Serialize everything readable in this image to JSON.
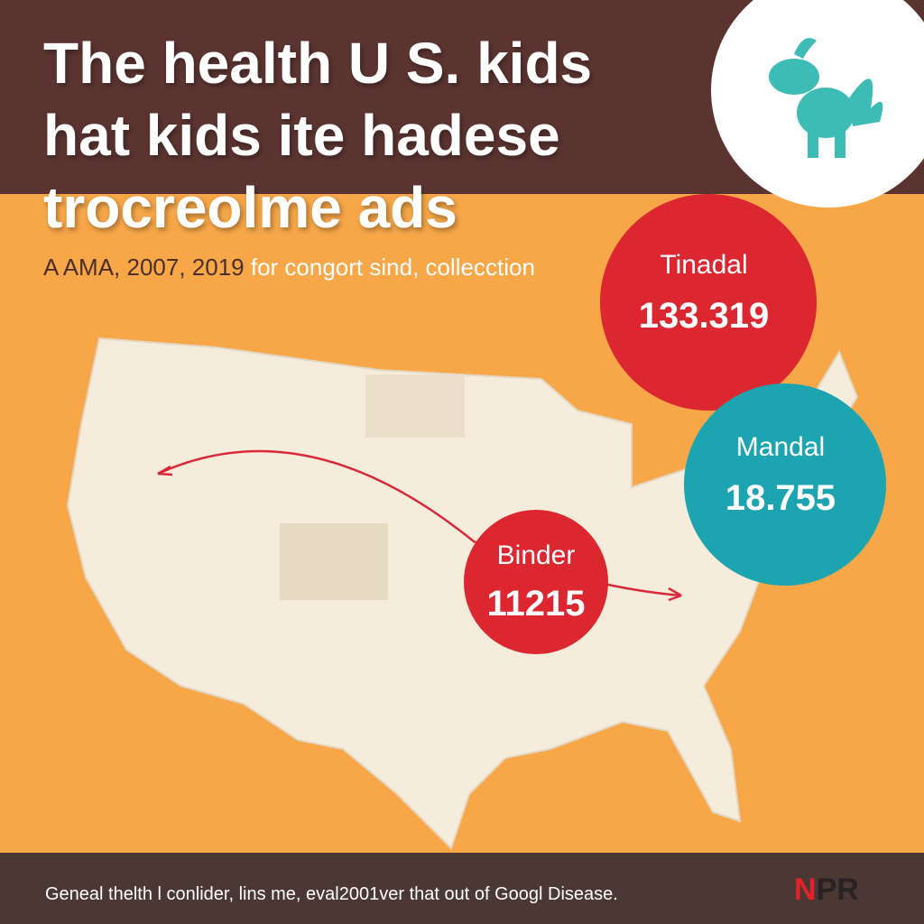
{
  "header": {
    "title_lines": [
      "The health U S. kids",
      "hat kids ite hadese",
      "trocreolme ads"
    ]
  },
  "subtitle": {
    "source": "A AMA, 2007, 2019",
    "note": "for congort sind, collecction"
  },
  "bubbles": [
    {
      "label": "Tinadal",
      "value": "133.319"
    },
    {
      "label": "Mandal",
      "value": "18.755"
    },
    {
      "label": "Binder",
      "value": "11215"
    }
  ],
  "footer": {
    "text": "Geneal thelth l conlider, lins me, eval2001ver that out of Googl Disease.",
    "logo": [
      "N",
      "PR"
    ]
  }
}
